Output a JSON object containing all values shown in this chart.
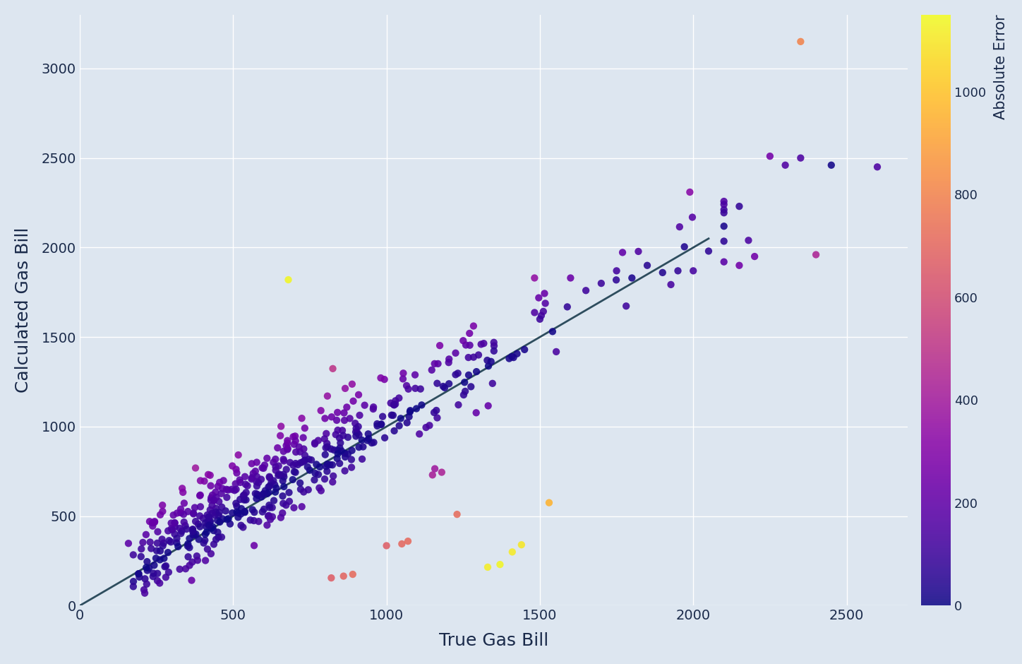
{
  "title": "",
  "xlabel": "True Gas Bill",
  "ylabel": "Calculated Gas Bill",
  "colorbar_label": "Absolute Error",
  "xlim": [
    0,
    2700
  ],
  "ylim": [
    0,
    3300
  ],
  "xticks": [
    0,
    500,
    1000,
    1500,
    2000,
    2500
  ],
  "yticks": [
    0,
    500,
    1000,
    1500,
    2000,
    2500,
    3000
  ],
  "line_color": "#2e4d5e",
  "background_color": "#dde6f0",
  "cmap": "plasma",
  "vmin": 0,
  "vmax": 1150,
  "marker_size": 55,
  "marker_alpha": 0.88,
  "font_color": "#1a2a4a",
  "grid_color": "white",
  "seed": 17
}
